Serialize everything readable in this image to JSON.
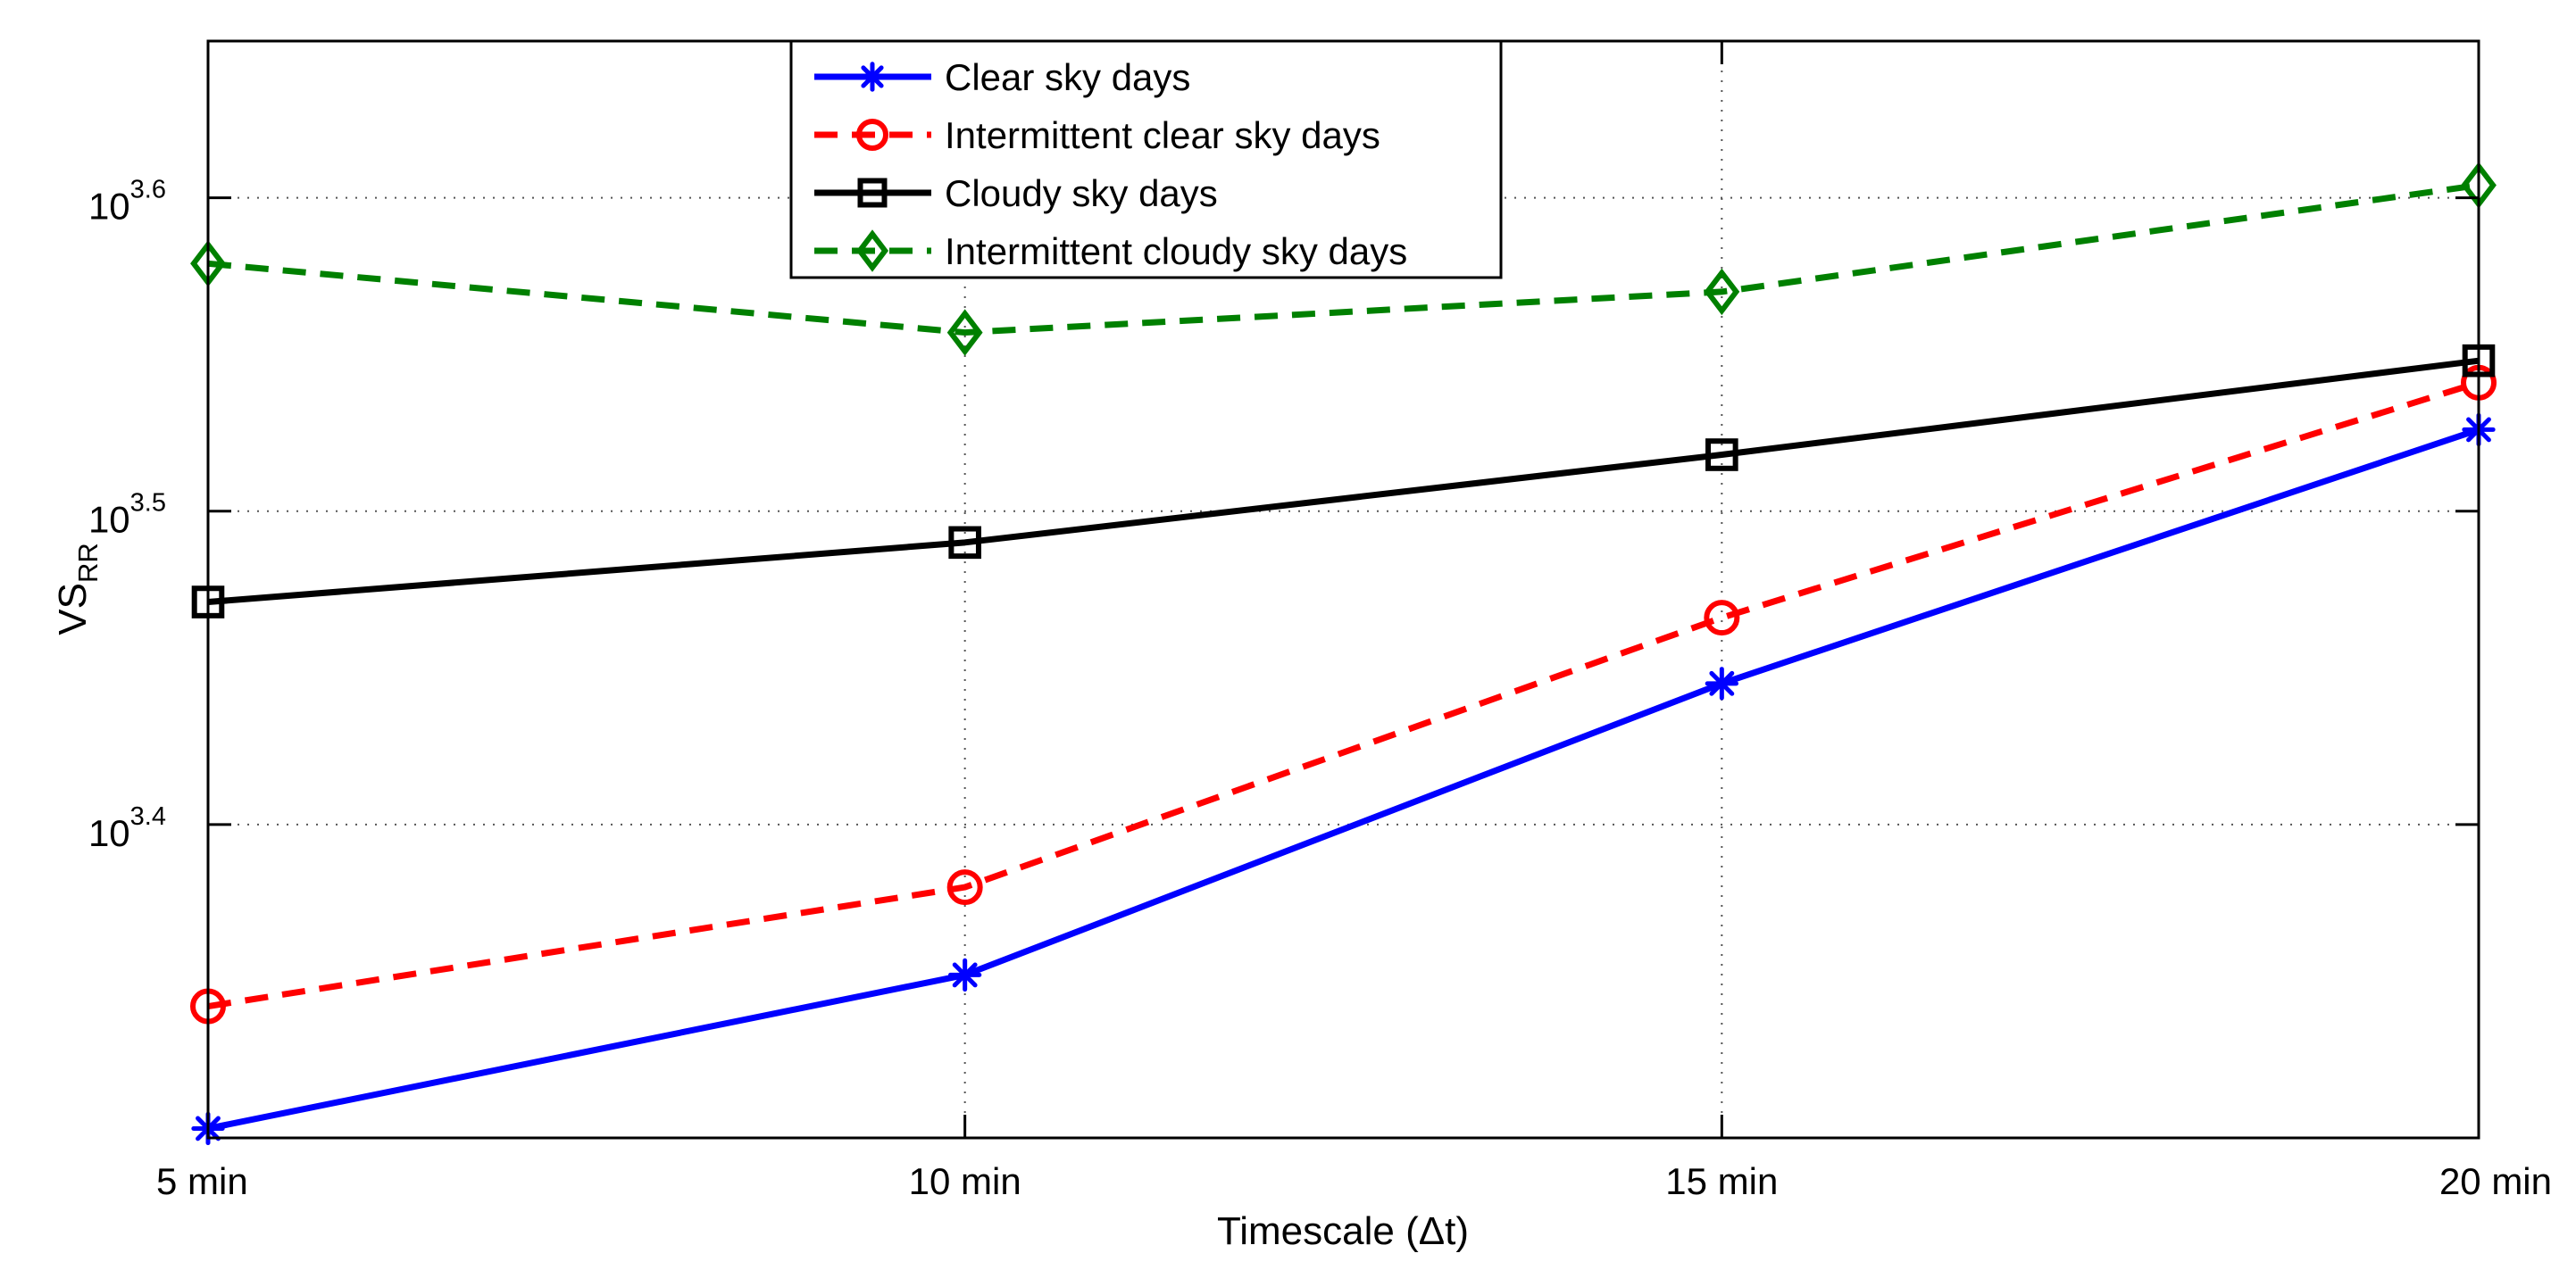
{
  "chart_data": {
    "type": "line",
    "title": "",
    "xlabel": "Timescale (Δt)",
    "ylabel": {
      "main": "VS",
      "sub": "RR"
    },
    "yscale": "log10",
    "categories": [
      "5 min",
      "10 min",
      "15 min",
      "20 min"
    ],
    "x": [
      5,
      10,
      15,
      20
    ],
    "xlim": [
      5,
      20
    ],
    "ylim_log10": [
      3.3,
      3.65
    ],
    "yticks": [
      {
        "base": "10",
        "exp": "3.4",
        "log10": 3.4
      },
      {
        "base": "10",
        "exp": "3.5",
        "log10": 3.5
      },
      {
        "base": "10",
        "exp": "3.6",
        "log10": 3.6
      }
    ],
    "grid": true,
    "grid_style": "dotted",
    "legend_position": "top-center",
    "series": [
      {
        "name": "Clear sky days",
        "color": "#0000ff",
        "line_style": "solid",
        "marker": "asterisk",
        "log10_values": [
          3.303,
          3.352,
          3.445,
          3.526
        ]
      },
      {
        "name": "Intermittent clear sky days",
        "color": "#ff0000",
        "line_style": "dashed",
        "marker": "circle",
        "log10_values": [
          3.342,
          3.38,
          3.466,
          3.541
        ]
      },
      {
        "name": "Cloudy sky days",
        "color": "#000000",
        "line_style": "solid",
        "marker": "square",
        "log10_values": [
          3.471,
          3.49,
          3.518,
          3.548
        ]
      },
      {
        "name": "Intermittent cloudy sky days",
        "color": "#008000",
        "line_style": "dashed",
        "marker": "diamond",
        "log10_values": [
          3.579,
          3.557,
          3.57,
          3.604
        ]
      }
    ]
  }
}
